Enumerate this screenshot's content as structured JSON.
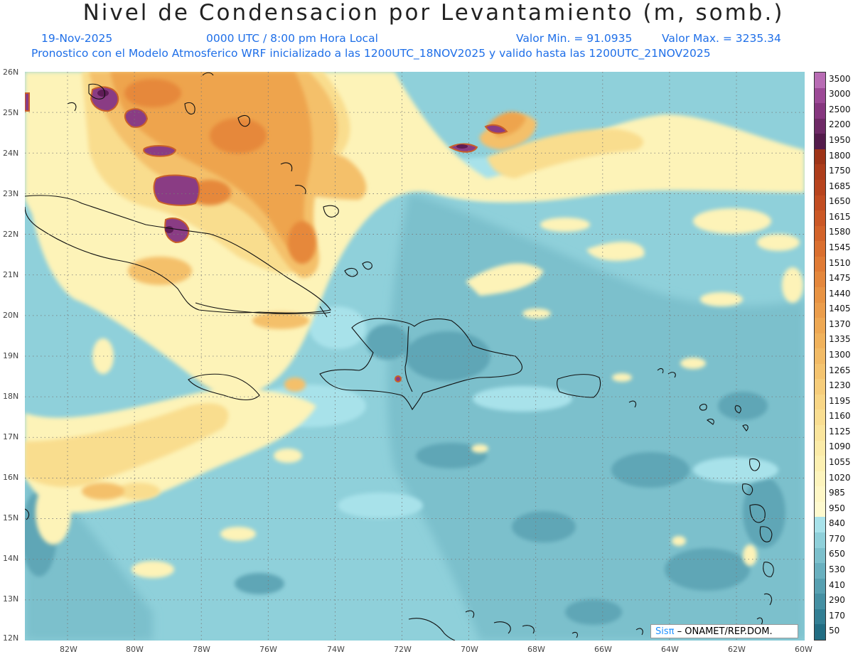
{
  "title": "Nivel de Condensacion por Levantamiento (m, somb.)",
  "header": {
    "date": "19-Nov-2025",
    "time": "0000 UTC / 8:00 pm Hora Local",
    "min": "Valor Min. = 91.0935",
    "max": "Valor Max. = 3235.34",
    "forecast": "Pronostico con el Modelo Atmosferico WRF inicializado a las 1200UTC_18NOV2025 y valido hasta las  1200UTC_21NOV2025"
  },
  "axes": {
    "lat": [
      "26N",
      "25N",
      "24N",
      "23N",
      "22N",
      "21N",
      "20N",
      "19N",
      "18N",
      "17N",
      "16N",
      "15N",
      "14N",
      "13N",
      "12N"
    ],
    "lon": [
      "82W",
      "80W",
      "78W",
      "76W",
      "74W",
      "72W",
      "70W",
      "68W",
      "66W",
      "64W",
      "62W",
      "60W"
    ]
  },
  "colorbar": {
    "labels": [
      "3500",
      "3000",
      "2500",
      "2200",
      "1950",
      "1800",
      "1750",
      "1685",
      "1650",
      "1615",
      "1580",
      "1545",
      "1510",
      "1475",
      "1440",
      "1405",
      "1370",
      "1335",
      "1300",
      "1265",
      "1230",
      "1195",
      "1160",
      "1125",
      "1090",
      "1055",
      "1020",
      "985",
      "950",
      "840",
      "770",
      "650",
      "530",
      "410",
      "290",
      "170",
      "50"
    ],
    "colors": [
      "#b86cb4",
      "#9c4a96",
      "#86377f",
      "#6e2a66",
      "#541c4c",
      "#9e3418",
      "#ad3d1b",
      "#b8441e",
      "#c24d22",
      "#cb5826",
      "#d3632a",
      "#da6f2f",
      "#e07b35",
      "#e4873c",
      "#e89343",
      "#eb9d4b",
      "#eea853",
      "#f0b25c",
      "#f2bb66",
      "#f4c470",
      "#f6cd7b",
      "#f8d686",
      "#f9de92",
      "#fae59d",
      "#fbeba8",
      "#fcf0b2",
      "#fdf4bd",
      "#fef7c6",
      "#fefacf",
      "#a8e2ea",
      "#8fd0da",
      "#7cc0cc",
      "#69b0bf",
      "#57a0b1",
      "#4590a3",
      "#337f94",
      "#226d83"
    ]
  },
  "map": {
    "colors": {
      "sea_base": "#8fd0da",
      "sea_mid": "#7cc0cc",
      "sea_dark": "#5fa6b6",
      "sea_deep": "#3f8ea2",
      "light": "#a8e2ea",
      "yellow": "#fdf3b8",
      "yellow2": "#f9dd8e",
      "orange1": "#f4c06a",
      "orange2": "#eea44e",
      "orange3": "#e6883a",
      "purple": "#8a3c84",
      "purple_dark": "#5e1c56",
      "coast": "#111111"
    }
  },
  "credit": {
    "logo": "Sisπ",
    "text": "– ONAMET/REP.DOM."
  }
}
